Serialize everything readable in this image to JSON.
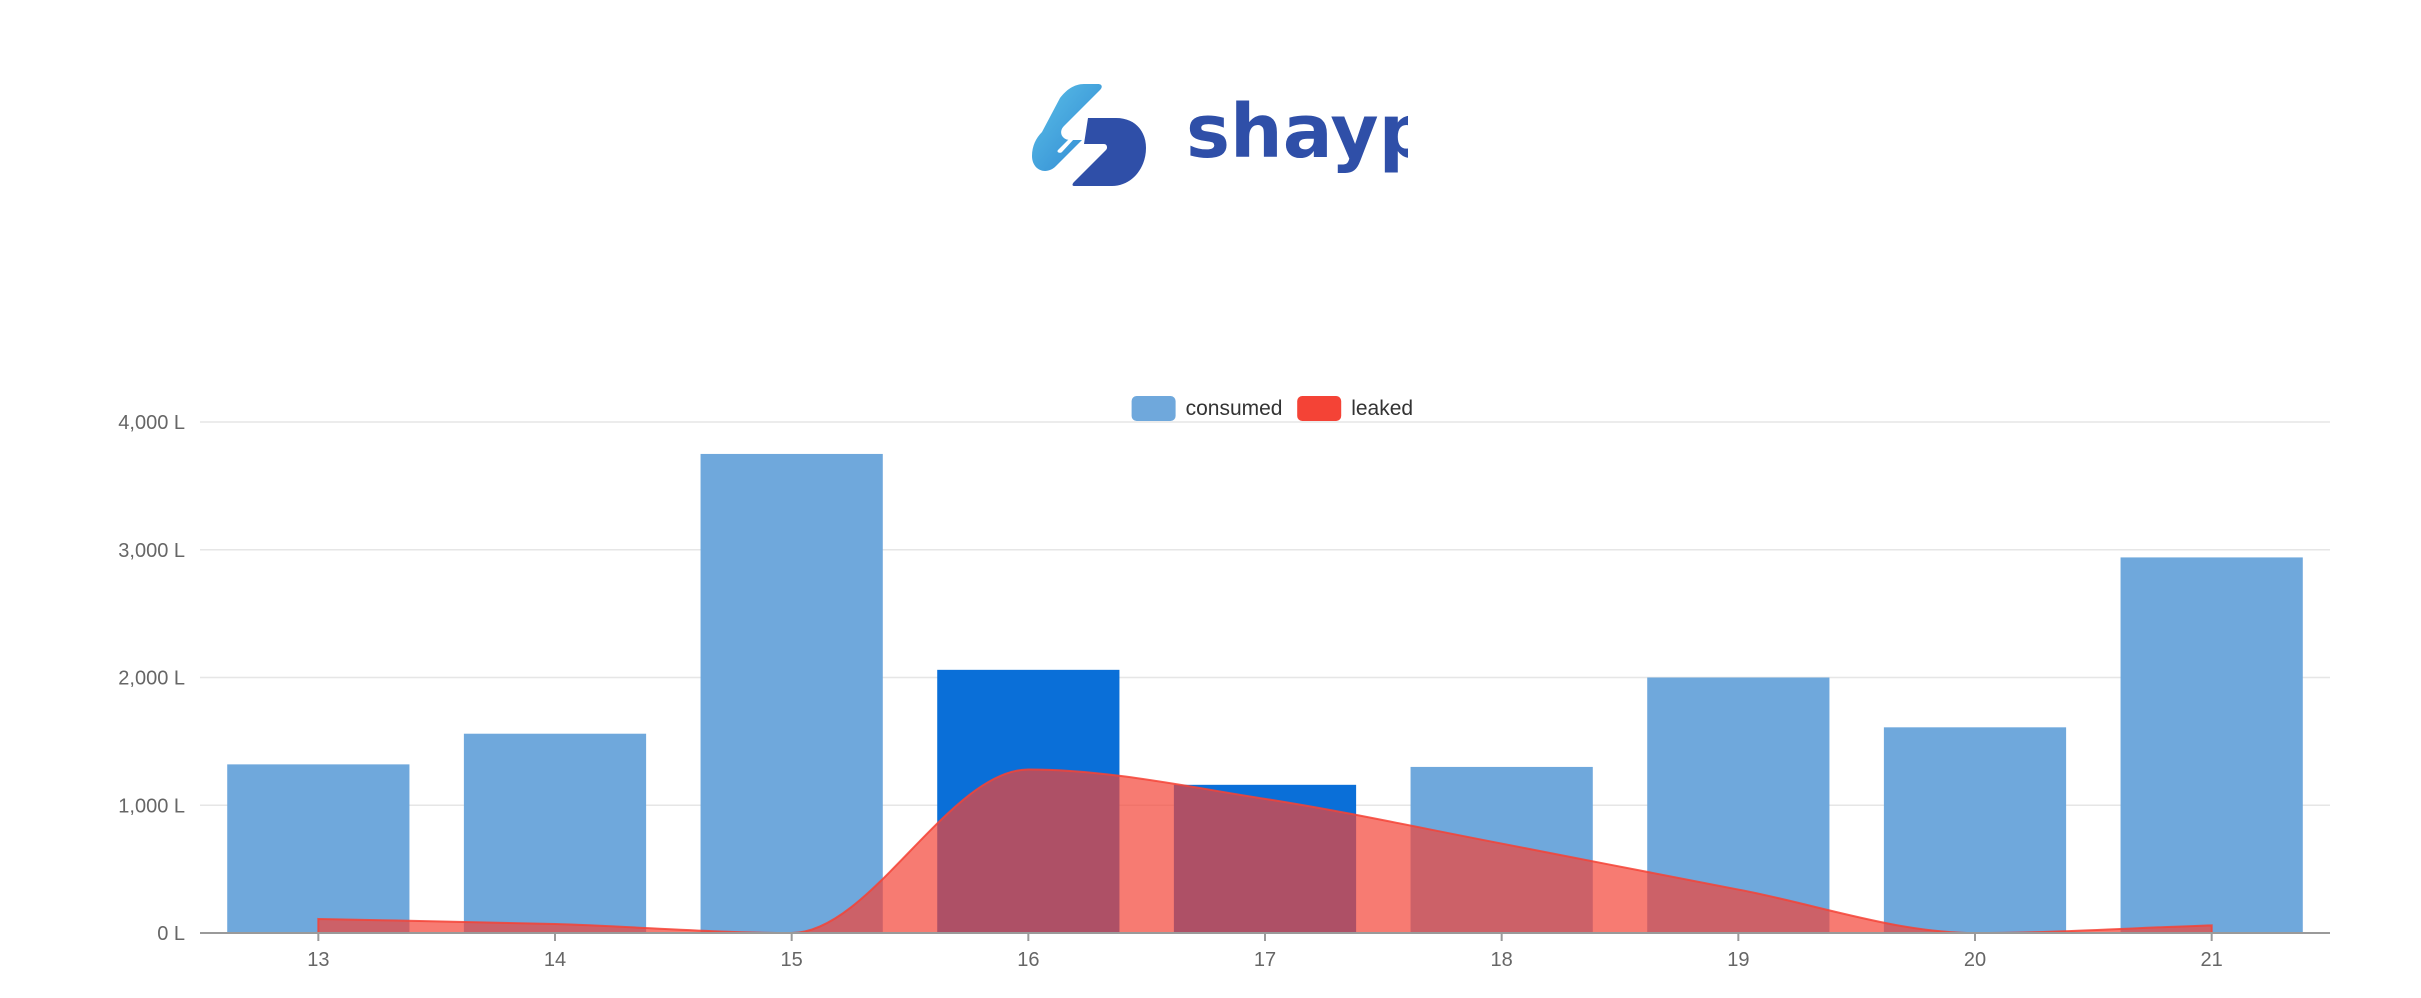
{
  "brand": {
    "name": "shayp",
    "colors": {
      "light": "#5BC0E8",
      "mid": "#2E86D1",
      "dark": "#2F4FA8",
      "text": "#2F4FA8"
    }
  },
  "chart_data": {
    "type": "bar",
    "categories": [
      "13",
      "14",
      "15",
      "16",
      "17",
      "18",
      "19",
      "20",
      "21"
    ],
    "series": [
      {
        "name": "consumed",
        "type": "bar",
        "color": "#6FA8DC",
        "highlight_color": "#0A6FD8",
        "highlighted": [
          false,
          false,
          false,
          true,
          true,
          false,
          false,
          false,
          false
        ],
        "values": [
          1320,
          1560,
          3750,
          2060,
          1160,
          1300,
          2000,
          1610,
          2940
        ]
      },
      {
        "name": "leaked",
        "type": "area",
        "color": "#F44336",
        "fill_opacity": 0.7,
        "smooth": true,
        "values": [
          110,
          70,
          0,
          1280,
          1050,
          700,
          340,
          0,
          60
        ]
      }
    ],
    "yticks": [
      "0 L",
      "1,000 L",
      "2,000 L",
      "3,000 L",
      "4,000 L"
    ],
    "ylim": [
      0,
      4000
    ],
    "grid": true,
    "legend_position": "top-center"
  }
}
